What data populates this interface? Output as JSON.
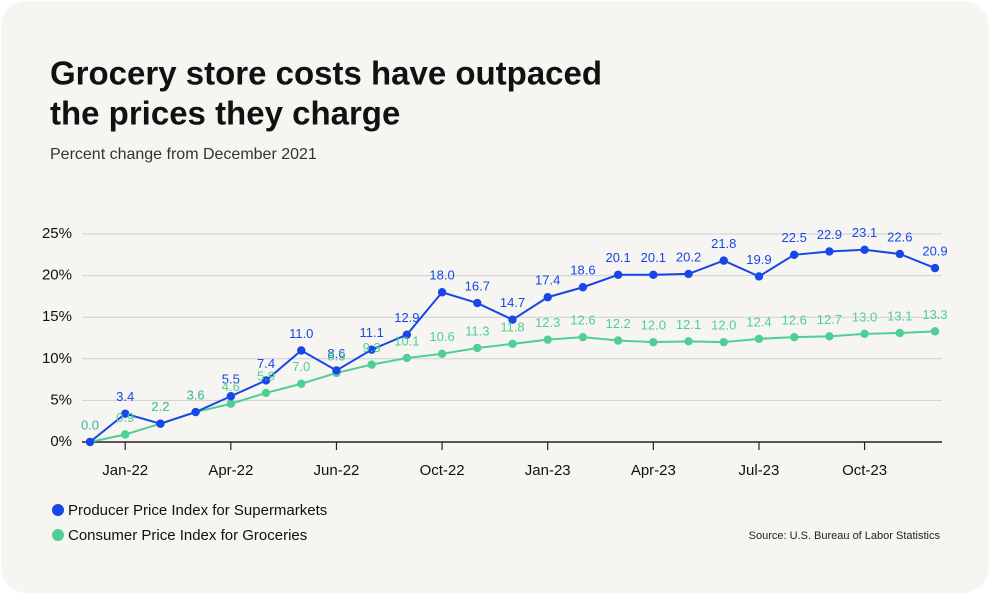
{
  "chart_data": {
    "type": "line",
    "title": [
      "Grocery store costs have outpaced",
      "the prices they charge"
    ],
    "subtitle": "Percent change from December 2021",
    "source": "Source: U.S. Bureau of Labor Statistics",
    "categories": [
      null,
      "Jan-22",
      null,
      null,
      "Apr-22",
      null,
      null,
      "Jun-22",
      null,
      null,
      "Oct-22",
      null,
      null,
      "Jan-23",
      null,
      null,
      "Apr-23",
      null,
      null,
      "Jul-23",
      null,
      null,
      "Oct-23",
      null,
      null
    ],
    "series": [
      {
        "name": "Producer Price Index for Supermarkets",
        "color": "#1747e6",
        "values": [
          0.0,
          3.4,
          2.2,
          3.6,
          5.5,
          7.4,
          11.0,
          8.6,
          11.1,
          12.9,
          18.0,
          16.7,
          14.7,
          17.4,
          18.6,
          20.1,
          20.1,
          20.2,
          21.8,
          19.9,
          22.5,
          22.9,
          23.1,
          22.6,
          20.9
        ],
        "value_labels": [
          "0.0",
          "3.4",
          "2.2",
          "3.6",
          "5.5",
          "7.4",
          "11.0",
          "8.6",
          "11.1",
          "12.9",
          "18.0",
          "16.7",
          "14.7",
          "17.4",
          "18.6",
          "20.1",
          "20.1",
          "20.2",
          "21.8",
          "19.9",
          "22.5",
          "22.9",
          "23.1",
          "22.6",
          "20.9"
        ]
      },
      {
        "name": "Consumer Price Index for Groceries",
        "color": "#4fcf93",
        "values": [
          0.0,
          0.9,
          2.2,
          3.6,
          4.6,
          5.9,
          7.0,
          8.3,
          9.3,
          10.1,
          10.6,
          11.3,
          11.8,
          12.3,
          12.6,
          12.2,
          12.0,
          12.1,
          12.0,
          12.4,
          12.6,
          12.7,
          13.0,
          13.1,
          13.3
        ],
        "value_labels": [
          "0.0",
          "0.9",
          "2.2",
          "3.6",
          "4.6",
          "5.9",
          "7.0",
          "8.3",
          "9.3",
          "10.1",
          "10.6",
          "11.3",
          "11.8",
          "12.3",
          "12.6",
          "12.2",
          "12.0",
          "12.1",
          "12.0",
          "12.4",
          "12.6",
          "12.7",
          "13.0",
          "13.1",
          "13.3"
        ]
      }
    ],
    "ylim": [
      0,
      25
    ],
    "yticks": [
      {
        "value": 0,
        "label": "0%"
      },
      {
        "value": 5,
        "label": "5%"
      },
      {
        "value": 10,
        "label": "10%"
      },
      {
        "value": 15,
        "label": "15%"
      },
      {
        "value": 20,
        "label": "20%"
      },
      {
        "value": 25,
        "label": "25%"
      }
    ],
    "grid": true
  }
}
